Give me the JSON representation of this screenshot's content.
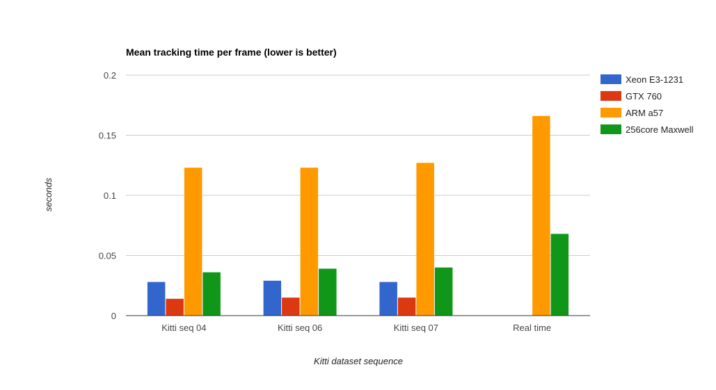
{
  "chart_data": {
    "type": "bar",
    "title": "Mean tracking time per frame (lower is better)",
    "xlabel": "Kitti dataset sequence",
    "ylabel": "seconds",
    "categories": [
      "Kitti seq 04",
      "Kitti seq 06",
      "Kitti seq 07",
      "Real time"
    ],
    "ylim": [
      0,
      0.2
    ],
    "yticks": [
      "0",
      "0.05",
      "0.1",
      "0.15",
      "0.2"
    ],
    "ytick_values": [
      0,
      0.05,
      0.1,
      0.15,
      0.2
    ],
    "grid": true,
    "legend_position": "right",
    "series": [
      {
        "name": "Xeon E3-1231",
        "color": "#3366cc",
        "values": [
          0.028,
          0.029,
          0.028,
          null
        ]
      },
      {
        "name": "GTX 760",
        "color": "#dc3912",
        "values": [
          0.014,
          0.015,
          0.015,
          null
        ]
      },
      {
        "name": "ARM a57",
        "color": "#ff9900",
        "values": [
          0.123,
          0.123,
          0.127,
          0.166
        ]
      },
      {
        "name": "256core Maxwell",
        "color": "#109618",
        "values": [
          0.036,
          0.039,
          0.04,
          0.068
        ]
      }
    ]
  }
}
